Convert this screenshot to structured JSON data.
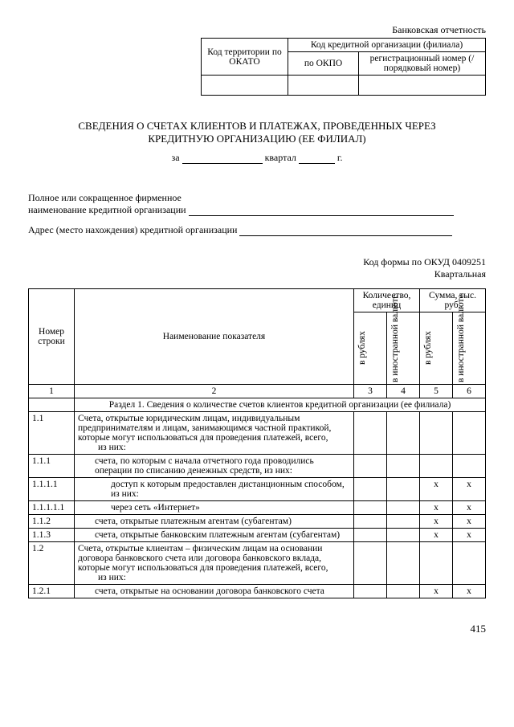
{
  "header": {
    "reportingLabel": "Банковская отчетность",
    "codeTable": {
      "r1c1": "Код территории по ОКАТО",
      "r1c2": "Код кредитной организации (филиала)",
      "r2c2a": "по ОКПО",
      "r2c2b": "регистрационный номер (/порядковый номер)"
    }
  },
  "title": {
    "line1": "СВЕДЕНИЯ О СЧЕТАХ КЛИЕНТОВ И ПЛАТЕЖАХ, ПРОВЕДЕННЫХ ЧЕРЕЗ",
    "line2": "КРЕДИТНУЮ ОРГАНИЗАЦИЮ (ЕЕ ФИЛИАЛ)",
    "periodPrefix": "за",
    "periodMid": "квартал",
    "periodSuffix": "г."
  },
  "fields": {
    "name1": "Полное или сокращенное фирменное",
    "name2": "наименование кредитной организации",
    "address": "Адрес  (место нахождения) кредитной организации"
  },
  "right": {
    "code": "Код формы по ОКУД 0409251",
    "period": "Квартальная"
  },
  "tableHeaders": {
    "rowNum": "Номер строки",
    "indicator": "Наименование показателя",
    "qty": "Количество, единиц",
    "sum": "Сумма, тыс. руб.",
    "inRub": "в рублях",
    "inFx": "в иностранной валюте",
    "c1": "1",
    "c2": "2",
    "c3": "3",
    "c4": "4",
    "c5": "5",
    "c6": "6"
  },
  "section1": "Раздел 1. Сведения о количестве счетов клиентов кредитной организации (ее филиала)",
  "rows": [
    {
      "num": "1.1",
      "name": "Счета, открытые юридическим лицам, индивидуальным предпринимателям и лицам, занимающимся частной практикой, которые могут использоваться для проведения платежей, всего,",
      "sub": "из них:",
      "indent": 0,
      "v": [
        "",
        "",
        "",
        ""
      ]
    },
    {
      "num": "1.1.1",
      "name": "счета, по которым с начала отчетного года проводились операции по списанию денежных средств, из них:",
      "indent": 1,
      "v": [
        "",
        "",
        "",
        ""
      ]
    },
    {
      "num": "1.1.1.1",
      "name": "доступ к которым предоставлен дистанционным способом, из них:",
      "indent": 2,
      "v": [
        "",
        "",
        "x",
        "x"
      ]
    },
    {
      "num": "1.1.1.1.1",
      "name": "через сеть «Интернет»",
      "indent": 2,
      "v": [
        "",
        "",
        "x",
        "x"
      ]
    },
    {
      "num": "1.1.2",
      "name": "счета, открытые платежным агентам (субагентам)",
      "indent": 1,
      "v": [
        "",
        "",
        "x",
        "x"
      ]
    },
    {
      "num": "1.1.3",
      "name": "счета, открытые банковским платежным агентам (субагентам)",
      "indent": 1,
      "v": [
        "",
        "",
        "x",
        "x"
      ]
    },
    {
      "num": "1.2",
      "name": "Счета, открытые клиентам – физическим лицам на основании договора банковского счета или договора банковского вклада, которые могут использоваться для проведения платежей, всего,",
      "sub": "из них:",
      "indent": 0,
      "v": [
        "",
        "",
        "",
        ""
      ]
    },
    {
      "num": "1.2.1",
      "name": "счета, открытые на основании договора банковского счета",
      "indent": 1,
      "v": [
        "",
        "",
        "x",
        "x"
      ]
    }
  ],
  "pageNum": "415"
}
